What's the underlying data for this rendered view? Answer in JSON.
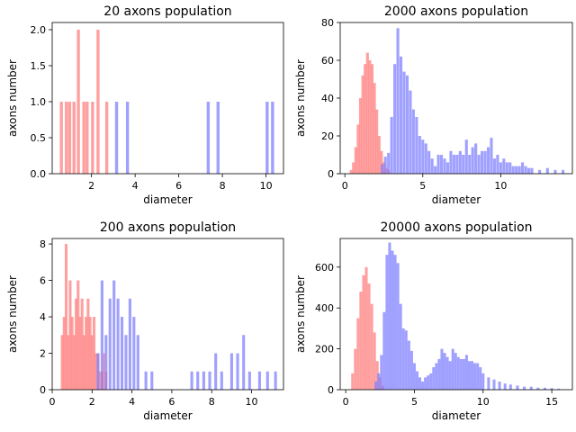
{
  "colors": {
    "red": "#ff8080",
    "blue": "#8080ff",
    "background": "#ffffff"
  },
  "chart_data": [
    {
      "type": "histogram",
      "title": "20 axons population",
      "xlabel": "diameter",
      "ylabel": "axons number",
      "xlim": [
        0.2,
        10.8
      ],
      "ylim": [
        0,
        2.1
      ],
      "xticks": [
        2,
        4,
        6,
        8,
        10
      ],
      "yticks": [
        0.0,
        0.5,
        1.0,
        1.5,
        2.0
      ],
      "ytick_labels": [
        "0.0",
        "0.5",
        "1.0",
        "1.5",
        "2.0"
      ],
      "bin_width": 0.14,
      "series": [
        {
          "color": "red",
          "x": [
            0.62,
            0.85,
            1.0,
            1.2,
            1.4,
            1.65,
            1.8,
            2.05,
            2.3,
            2.7
          ],
          "values": [
            1,
            1,
            1,
            1,
            2,
            1,
            1,
            1,
            2,
            1
          ]
        },
        {
          "color": "blue",
          "x": [
            3.15,
            3.65,
            7.35,
            7.8,
            10.05,
            10.3
          ],
          "values": [
            1,
            1,
            1,
            1,
            1,
            1
          ]
        }
      ]
    },
    {
      "type": "histogram",
      "title": "2000 axons population",
      "xlabel": "diameter",
      "ylabel": "axons number",
      "xlim": [
        -0.3,
        14.6
      ],
      "ylim": [
        0,
        80
      ],
      "xticks": [
        0,
        5,
        10
      ],
      "yticks": [
        0,
        20,
        40,
        60,
        80
      ],
      "ytick_labels": [
        "0",
        "20",
        "40",
        "60",
        "80"
      ],
      "bin_width": 0.18,
      "series": [
        {
          "color": "red",
          "x": [
            0.4,
            0.55,
            0.7,
            0.85,
            1.0,
            1.15,
            1.3,
            1.45,
            1.6,
            1.75,
            1.9,
            2.05,
            2.2,
            2.35,
            2.5,
            2.65,
            2.8
          ],
          "values": [
            2,
            6,
            14,
            26,
            40,
            52,
            58,
            64,
            60,
            58,
            48,
            34,
            20,
            12,
            6,
            3,
            2
          ]
        },
        {
          "color": "blue",
          "x": [
            2.4,
            2.6,
            2.8,
            3.0,
            3.2,
            3.4,
            3.6,
            3.8,
            4.0,
            4.2,
            4.4,
            4.6,
            4.8,
            5.0,
            5.2,
            5.4,
            5.6,
            5.8,
            6.0,
            6.2,
            6.4,
            6.6,
            6.8,
            7.0,
            7.2,
            7.4,
            7.6,
            7.8,
            8.0,
            8.2,
            8.4,
            8.6,
            8.8,
            9.0,
            9.2,
            9.4,
            9.6,
            9.8,
            10.0,
            10.2,
            10.4,
            10.6,
            10.8,
            11.0,
            11.2,
            11.4,
            11.6,
            11.8,
            12.0,
            12.5,
            13.0,
            13.5,
            14.0
          ],
          "values": [
            5,
            9,
            11,
            30,
            58,
            77,
            62,
            54,
            52,
            44,
            34,
            30,
            20,
            18,
            16,
            12,
            8,
            4,
            10,
            10,
            8,
            6,
            12,
            10,
            10,
            12,
            10,
            18,
            10,
            14,
            16,
            10,
            12,
            12,
            14,
            19,
            8,
            10,
            6,
            8,
            6,
            6,
            4,
            4,
            4,
            6,
            4,
            3,
            3,
            2,
            3,
            2,
            2
          ]
        }
      ]
    },
    {
      "type": "histogram",
      "title": "200 axons population",
      "xlabel": "diameter",
      "ylabel": "axons number",
      "xlim": [
        0.0,
        11.6
      ],
      "ylim": [
        0,
        8.3
      ],
      "xticks": [
        0,
        2,
        4,
        6,
        8,
        10
      ],
      "yticks": [
        0,
        2,
        4,
        6,
        8
      ],
      "ytick_labels": [
        "0",
        "2",
        "4",
        "6",
        "8"
      ],
      "bin_width": 0.14,
      "series": [
        {
          "color": "red",
          "x": [
            0.5,
            0.6,
            0.7,
            0.8,
            0.9,
            1.0,
            1.1,
            1.2,
            1.3,
            1.4,
            1.5,
            1.6,
            1.7,
            1.8,
            1.9,
            2.0,
            2.1,
            2.2,
            2.3,
            2.4,
            2.5,
            2.6,
            2.7
          ],
          "values": [
            3,
            4,
            8,
            3,
            6,
            4,
            3,
            5,
            6,
            4,
            5,
            3,
            4,
            5,
            4,
            3,
            4,
            2,
            2,
            1,
            1,
            2,
            1
          ]
        },
        {
          "color": "blue",
          "x": [
            2.3,
            2.5,
            2.7,
            2.9,
            3.1,
            3.3,
            3.5,
            3.7,
            3.9,
            4.1,
            4.3,
            4.7,
            5.0,
            7.0,
            7.3,
            7.6,
            7.9,
            8.2,
            8.5,
            9.0,
            9.3,
            9.6,
            9.9,
            10.4,
            10.8,
            11.2
          ],
          "values": [
            2,
            6,
            3,
            5,
            6,
            5,
            4,
            3,
            5,
            4,
            3,
            1,
            1,
            1,
            1,
            1,
            1,
            2,
            1,
            2,
            2,
            3,
            1,
            1,
            1,
            1
          ]
        }
      ]
    },
    {
      "type": "histogram",
      "title": "20000 axons population",
      "xlabel": "diameter",
      "ylabel": "axons number",
      "xlim": [
        -0.4,
        16.5
      ],
      "ylim": [
        0,
        740
      ],
      "xticks": [
        0,
        5,
        10,
        15
      ],
      "yticks": [
        0,
        200,
        400,
        600
      ],
      "ytick_labels": [
        "0",
        "200",
        "400",
        "600"
      ],
      "bin_width": 0.2,
      "series": [
        {
          "color": "red",
          "x": [
            0.5,
            0.7,
            0.9,
            1.1,
            1.3,
            1.5,
            1.7,
            1.9,
            2.1,
            2.3,
            2.5,
            2.7
          ],
          "values": [
            80,
            200,
            350,
            480,
            560,
            600,
            520,
            420,
            280,
            140,
            60,
            20
          ]
        },
        {
          "color": "blue",
          "x": [
            2.2,
            2.4,
            2.6,
            2.8,
            3.0,
            3.2,
            3.4,
            3.6,
            3.8,
            4.0,
            4.2,
            4.4,
            4.6,
            4.8,
            5.0,
            5.2,
            5.4,
            5.6,
            5.8,
            6.0,
            6.2,
            6.4,
            6.6,
            6.8,
            7.0,
            7.2,
            7.4,
            7.6,
            7.8,
            8.0,
            8.2,
            8.4,
            8.6,
            8.8,
            9.0,
            9.2,
            9.4,
            9.6,
            9.8,
            10.0,
            10.4,
            10.8,
            11.2,
            11.6,
            12.0,
            12.5,
            13.0,
            13.5,
            14.0,
            14.5,
            15.0,
            15.5
          ],
          "values": [
            40,
            80,
            170,
            380,
            660,
            720,
            680,
            660,
            620,
            420,
            300,
            290,
            240,
            190,
            130,
            90,
            60,
            40,
            60,
            70,
            80,
            110,
            130,
            150,
            200,
            180,
            160,
            140,
            200,
            180,
            160,
            150,
            150,
            170,
            140,
            140,
            130,
            130,
            110,
            80,
            60,
            50,
            40,
            30,
            25,
            20,
            15,
            15,
            10,
            10,
            8,
            5
          ]
        }
      ]
    }
  ]
}
